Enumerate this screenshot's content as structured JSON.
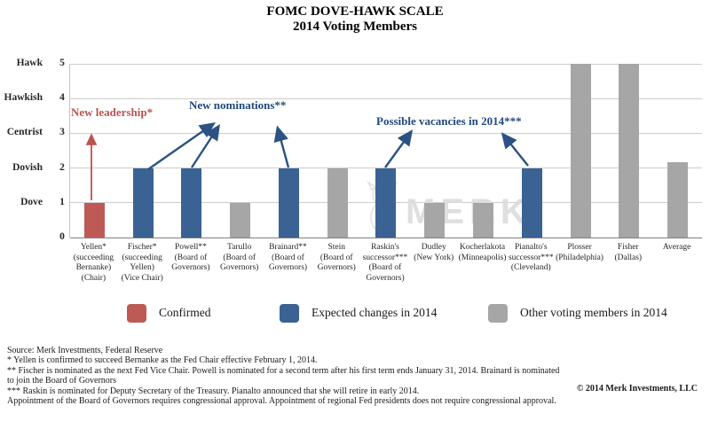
{
  "title": {
    "line1": "FOMC DOVE-HAWK SCALE",
    "line2": "2014 Voting Members"
  },
  "watermark": {
    "text": "MERK",
    "registered_mark": "®"
  },
  "chart_data": {
    "type": "bar",
    "title": "FOMC DOVE-HAWK SCALE — 2014 Voting Members",
    "xlabel": "",
    "ylabel": "Dove-Hawk scale",
    "ylim": [
      0,
      5
    ],
    "grid": true,
    "scale_labels": [
      {
        "name": "Hawk",
        "value": 5
      },
      {
        "name": "Hawkish",
        "value": 4
      },
      {
        "name": "Centrist",
        "value": 3
      },
      {
        "name": "Dovish",
        "value": 2
      },
      {
        "name": "Dove",
        "value": 1
      },
      {
        "name": "",
        "value": 0
      }
    ],
    "categories": [
      "Yellen*\n(succeeding\nBernanke)\n(Chair)",
      "Fischer*\n(succeeding\nYellen)\n(Vice Chair)",
      "Powell**\n(Board of\nGovernors)",
      "Tarullo\n(Board of\nGovernors)",
      "Brainard**\n(Board of\nGovernors)",
      "Stein\n(Board of\nGovernors)",
      "Raskin's\nsuccessor***\n(Board of\nGovernors)",
      "Dudley\n(New York)",
      "Kocherlakota\n(Minneapolis)",
      "Pianalto's\nsuccessor***\n(Cleveland)",
      "Plosser\n(Philadelphia)",
      "Fisher\n(Dallas)",
      "Average"
    ],
    "values": [
      1,
      2,
      2,
      1,
      2,
      2,
      2,
      1,
      1,
      2,
      5,
      5,
      2.17
    ],
    "groups": [
      "confirmed",
      "expected",
      "expected",
      "other",
      "expected",
      "other",
      "expected",
      "other",
      "other",
      "expected",
      "other",
      "other",
      "other"
    ],
    "group_colors": {
      "confirmed": "#be5a55",
      "expected": "#3a6293",
      "other": "#a6a6a6"
    },
    "annotations": [
      {
        "text": "New leadership*",
        "color": "#bd524e",
        "targets": [
          "Yellen*"
        ]
      },
      {
        "text": "New nominations**",
        "color": "#1f497d",
        "targets": [
          "Fischer*",
          "Powell**",
          "Brainard**"
        ]
      },
      {
        "text": "Possible vacancies in 2014***",
        "color": "#1f497d",
        "targets": [
          "Raskin's successor***",
          "Pianalto's successor***"
        ]
      }
    ]
  },
  "legend": [
    {
      "label": "Confirmed",
      "color": "#be5a55"
    },
    {
      "label": "Expected changes in 2014",
      "color": "#3a6293"
    },
    {
      "label": "Other voting members in 2014",
      "color": "#a6a6a6"
    }
  ],
  "footnotes": {
    "lines": [
      "Source: Merk Investments, Federal Reserve",
      "* Yellen is confirmed to succeed Bernanke as the Fed Chair effective February 1, 2014.",
      "** Fischer is nominated as the next Fed Vice Chair. Powell is nominated for a second term after his first term ends January 31, 2014. Brainard is nominated",
      "to join the Board of Governors",
      "*** Raskin is nominated for Deputy Secretary of the Treasury. Pianalto announced that she will retire in early 2014.",
      "Appointment of the Board of Governors requires congressional approval. Appointment of regional Fed presidents does not require congressional approval."
    ],
    "copyright": "© 2014 Merk Investments, LLC"
  }
}
